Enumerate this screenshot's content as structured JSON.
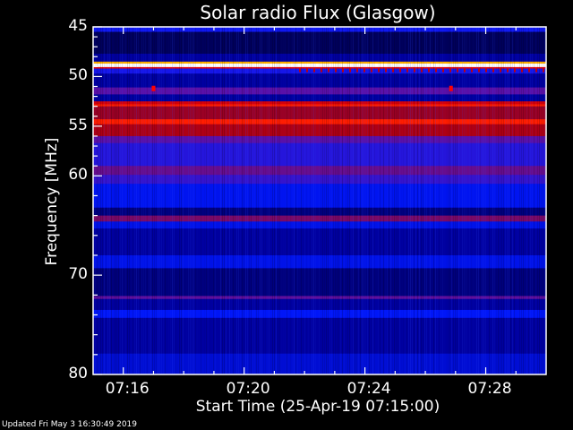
{
  "chart_data": {
    "type": "heatmap",
    "title": "Solar radio Flux (Glasgow)",
    "xlabel": "Start Time (25-Apr-19 07:15:00)",
    "ylabel": "Frequency [MHz]",
    "x_range": [
      "07:15:00",
      "07:30:00"
    ],
    "x_ticks": [
      "07:16",
      "07:20",
      "07:24",
      "07:28"
    ],
    "x_tick_minutes": [
      16,
      20,
      24,
      28
    ],
    "y_range": [
      45,
      80
    ],
    "y_inverted": true,
    "y_ticks": [
      45,
      50,
      55,
      60,
      70,
      80
    ],
    "y_tick_labels": [
      "45",
      "50",
      "55",
      "60",
      "70",
      "80"
    ],
    "colormap": [
      [
        0.0,
        "#000018"
      ],
      [
        0.2,
        "#0000a0"
      ],
      [
        0.33,
        "#0018ff"
      ],
      [
        0.45,
        "#5a10a8"
      ],
      [
        0.56,
        "#a00018"
      ],
      [
        0.7,
        "#ff0000"
      ],
      [
        0.82,
        "#ffb000"
      ],
      [
        1.0,
        "#ffffff"
      ]
    ],
    "intensity_profile": [
      {
        "f": [
          45.0,
          45.5
        ],
        "v": 0.35
      },
      {
        "f": [
          45.5,
          47.7
        ],
        "v": 0.1
      },
      {
        "f": [
          47.7,
          48.5
        ],
        "v": 0.2
      },
      {
        "f": [
          48.5,
          48.7
        ],
        "v": 0.82
      },
      {
        "f": [
          48.7,
          49.05
        ],
        "v": 1.0
      },
      {
        "f": [
          49.05,
          49.2
        ],
        "v": 0.66
      },
      {
        "f": [
          49.2,
          49.7
        ],
        "v": 0.36
      },
      {
        "f": [
          49.7,
          51.1
        ],
        "v": 0.2
      },
      {
        "f": [
          51.1,
          51.8
        ],
        "v": 0.45
      },
      {
        "f": [
          51.8,
          52.5
        ],
        "v": 0.2
      },
      {
        "f": [
          52.5,
          52.8
        ],
        "v": 0.64
      },
      {
        "f": [
          52.8,
          53.0
        ],
        "v": 0.72
      },
      {
        "f": [
          53.0,
          54.3
        ],
        "v": 0.55
      },
      {
        "f": [
          54.3,
          54.8
        ],
        "v": 0.72
      },
      {
        "f": [
          54.8,
          56.0
        ],
        "v": 0.58
      },
      {
        "f": [
          56.0,
          56.7
        ],
        "v": 0.45
      },
      {
        "f": [
          56.7,
          59.0
        ],
        "v": 0.38
      },
      {
        "f": [
          59.0,
          59.9
        ],
        "v": 0.47
      },
      {
        "f": [
          59.9,
          60.8
        ],
        "v": 0.4
      },
      {
        "f": [
          60.8,
          63.2
        ],
        "v": 0.31
      },
      {
        "f": [
          63.2,
          64.0
        ],
        "v": 0.15
      },
      {
        "f": [
          64.0,
          64.6
        ],
        "v": 0.5
      },
      {
        "f": [
          64.6,
          65.3
        ],
        "v": 0.3
      },
      {
        "f": [
          65.3,
          68.0
        ],
        "v": 0.2
      },
      {
        "f": [
          68.0,
          69.3
        ],
        "v": 0.3
      },
      {
        "f": [
          69.3,
          72.1
        ],
        "v": 0.15
      },
      {
        "f": [
          72.1,
          72.4
        ],
        "v": 0.46
      },
      {
        "f": [
          72.4,
          73.5
        ],
        "v": 0.2
      },
      {
        "f": [
          73.5,
          74.3
        ],
        "v": 0.32
      },
      {
        "f": [
          74.3,
          77.9
        ],
        "v": 0.2
      },
      {
        "f": [
          77.9,
          80.0
        ],
        "v": 0.27
      }
    ],
    "spikes": [
      {
        "time_min": 17.0,
        "f": 51.2,
        "v": 0.7
      },
      {
        "time_min": 26.85,
        "f": 51.2,
        "v": 0.7
      }
    ],
    "grid": false
  },
  "footer": {
    "updated": "Updated Fri May  3 16:30:49 2019"
  }
}
